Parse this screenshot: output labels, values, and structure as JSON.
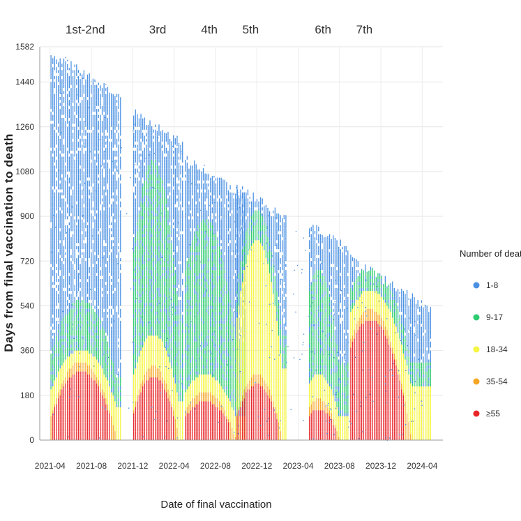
{
  "chart_data": {
    "type": "heatmap",
    "xlabel": "Date of final vaccination",
    "ylabel": "Days from final vaccination to death",
    "x_ticks": [
      "2021-04",
      "2021-08",
      "2021-12",
      "2022-04",
      "2022-08",
      "2022-12",
      "2023-04",
      "2023-08",
      "2023-12",
      "2024-04"
    ],
    "y_ticks": [
      0,
      180,
      360,
      540,
      720,
      900,
      1080,
      1260,
      1440,
      1582
    ],
    "ylim": [
      0,
      1582
    ],
    "xlim": [
      "2021-03",
      "2024-06"
    ],
    "grid": true,
    "dose_labels": [
      {
        "label": "1st-2nd",
        "date": "2021-07"
      },
      {
        "label": "3rd",
        "date": "2022-02"
      },
      {
        "label": "4th",
        "date": "2022-07"
      },
      {
        "label": "5th",
        "date": "2022-11"
      },
      {
        "label": "6th",
        "date": "2023-06"
      },
      {
        "label": "7th",
        "date": "2023-10"
      }
    ],
    "legend": {
      "title": "Number of deaths",
      "position": "right",
      "entries": [
        {
          "label": "1-8",
          "color": "#4a90e2"
        },
        {
          "label": "9-17",
          "color": "#2ecc71"
        },
        {
          "label": "18-34",
          "color": "#f5f542"
        },
        {
          "label": "35-54",
          "color": "#f5a623"
        },
        {
          "label": "≥55",
          "color": "#e8262a"
        }
      ]
    },
    "waves": [
      {
        "name": "1st-2nd",
        "start": "2021-04",
        "end": "2021-10",
        "peak": "2021-07",
        "max_days": 1560,
        "green_top": 560,
        "yellow_top": 360,
        "red_top": 270
      },
      {
        "name": "3rd",
        "start": "2021-12",
        "end": "2022-04",
        "peak": "2022-02",
        "max_days": 1320,
        "green_top": 1120,
        "yellow_top": 420,
        "red_top": 250
      },
      {
        "name": "4th",
        "start": "2022-05",
        "end": "2022-10",
        "peak": "2022-07",
        "max_days": 1130,
        "green_top": 880,
        "yellow_top": 260,
        "red_top": 150
      },
      {
        "name": "5th",
        "start": "2022-10",
        "end": "2023-02",
        "peak": "2022-12",
        "max_days": 1020,
        "green_top": 920,
        "yellow_top": 800,
        "red_top": 220
      },
      {
        "name": "6th",
        "start": "2023-05",
        "end": "2023-08",
        "peak": "2023-06",
        "max_days": 870,
        "green_top": 680,
        "yellow_top": 260,
        "red_top": 120
      },
      {
        "name": "7th",
        "start": "2023-09",
        "end": "2024-04",
        "peak": "2023-11",
        "max_days": 730,
        "green_top": 690,
        "yellow_top": 600,
        "red_top": 480
      }
    ]
  }
}
